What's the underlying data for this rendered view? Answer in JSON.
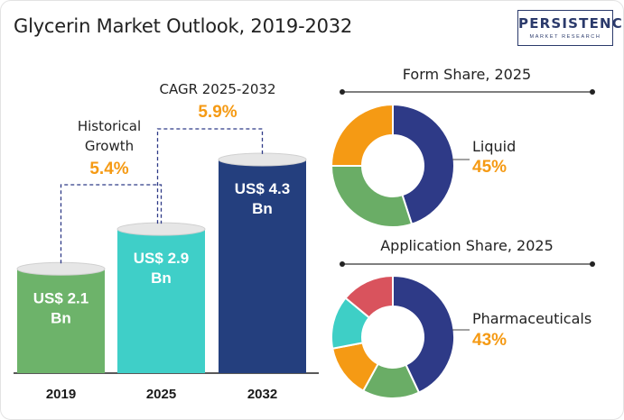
{
  "title": "Glycerin Market Outlook, 2019-2032",
  "logo": {
    "main": "PERSISTENCE",
    "sub": "MARKET RESEARCH"
  },
  "colors": {
    "bar_2019": "#6db36a",
    "bar_2025": "#3fcfc8",
    "bar_2032": "#243f7e",
    "accent": "#f59a14",
    "donut_navy": "#2e3a87",
    "donut_green": "#6aad66",
    "donut_orange": "#f59a14",
    "donut_teal": "#3ecfc6",
    "donut_red": "#d9535d"
  },
  "growth": {
    "historical_label_1": "Historical",
    "historical_label_2": "Growth",
    "historical_value": "5.4%",
    "cagr_label": "CAGR 2025-2032",
    "cagr_value": "5.9%"
  },
  "form_share": {
    "title": "Form Share, 2025",
    "highlight_label": "Liquid",
    "highlight_value": "45%"
  },
  "application_share": {
    "title": "Application Share, 2025",
    "highlight_label": "Pharmaceuticals",
    "highlight_value": "43%"
  },
  "chart_data": [
    {
      "type": "bar",
      "categories": [
        "2019",
        "2025",
        "2032"
      ],
      "values": [
        2.1,
        2.9,
        4.3
      ],
      "value_labels": [
        [
          "US$ 2.1",
          "Bn"
        ],
        [
          "US$ 2.9",
          "Bn"
        ],
        [
          "US$ 4.3",
          "Bn"
        ]
      ],
      "ylim": [
        0,
        4.3
      ],
      "bar_colors": [
        "#6db36a",
        "#3fcfc8",
        "#243f7e"
      ]
    },
    {
      "type": "pie",
      "title": "Form Share, 2025",
      "slices": [
        {
          "label": "Liquid",
          "value": 45,
          "color": "#2e3a87"
        },
        {
          "label": "",
          "value": 30,
          "color": "#6aad66"
        },
        {
          "label": "",
          "value": 25,
          "color": "#f59a14"
        }
      ]
    },
    {
      "type": "pie",
      "title": "Application Share, 2025",
      "slices": [
        {
          "label": "Pharmaceuticals",
          "value": 43,
          "color": "#2e3a87"
        },
        {
          "label": "",
          "value": 15,
          "color": "#6aad66"
        },
        {
          "label": "",
          "value": 14,
          "color": "#f59a14"
        },
        {
          "label": "",
          "value": 14,
          "color": "#3ecfc6"
        },
        {
          "label": "",
          "value": 14,
          "color": "#d9535d"
        }
      ]
    }
  ]
}
